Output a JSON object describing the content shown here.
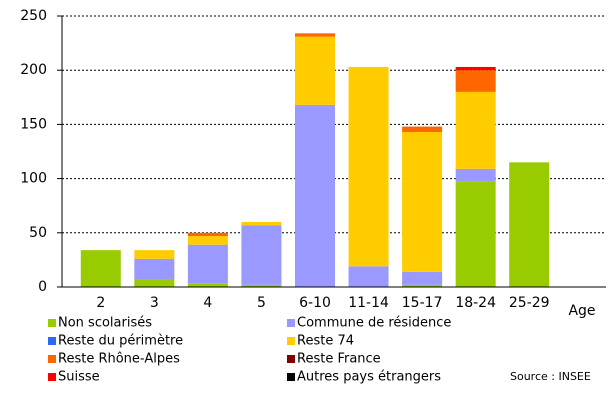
{
  "chart_data": {
    "type": "stacked_bar",
    "categories": [
      "2",
      "3",
      "4",
      "5",
      "6-10",
      "11-14",
      "15-17",
      "18-24",
      "25-29"
    ],
    "series": [
      {
        "name": "Non scolarisés",
        "color": "#99cc00",
        "values": [
          34,
          7,
          3,
          2,
          0,
          0,
          2,
          97,
          115
        ]
      },
      {
        "name": "Commune de résidence",
        "color": "#9999ff",
        "values": [
          0,
          19,
          36,
          55,
          168,
          19,
          12,
          12,
          0
        ]
      },
      {
        "name": "Reste du périmètre",
        "color": "#3366ff",
        "values": [
          0,
          0,
          0,
          0,
          0,
          0,
          0,
          0,
          0
        ]
      },
      {
        "name": "Reste 74",
        "color": "#ffcc00",
        "values": [
          0,
          8,
          8,
          3,
          63,
          184,
          129,
          71,
          0
        ]
      },
      {
        "name": "Reste Rhône-Alpes",
        "color": "#ff6600",
        "values": [
          0,
          0,
          3,
          0,
          3,
          0,
          5,
          20,
          0
        ]
      },
      {
        "name": "Reste France",
        "color": "#800000",
        "values": [
          0,
          0,
          0,
          0,
          0,
          0,
          0,
          0,
          0
        ]
      },
      {
        "name": "Suisse",
        "color": "#ff0000",
        "values": [
          0,
          0,
          0,
          0,
          0,
          0,
          0,
          3,
          0
        ]
      },
      {
        "name": "Autres pays étrangers",
        "color": "#000000",
        "values": [
          0,
          0,
          0,
          0,
          0,
          0,
          0,
          0,
          0
        ]
      }
    ],
    "x_label": "Age",
    "source": "Source : INSEE",
    "ylim": [
      0,
      250
    ],
    "yticks": [
      0,
      50,
      100,
      150,
      200,
      250
    ],
    "grid": true
  }
}
